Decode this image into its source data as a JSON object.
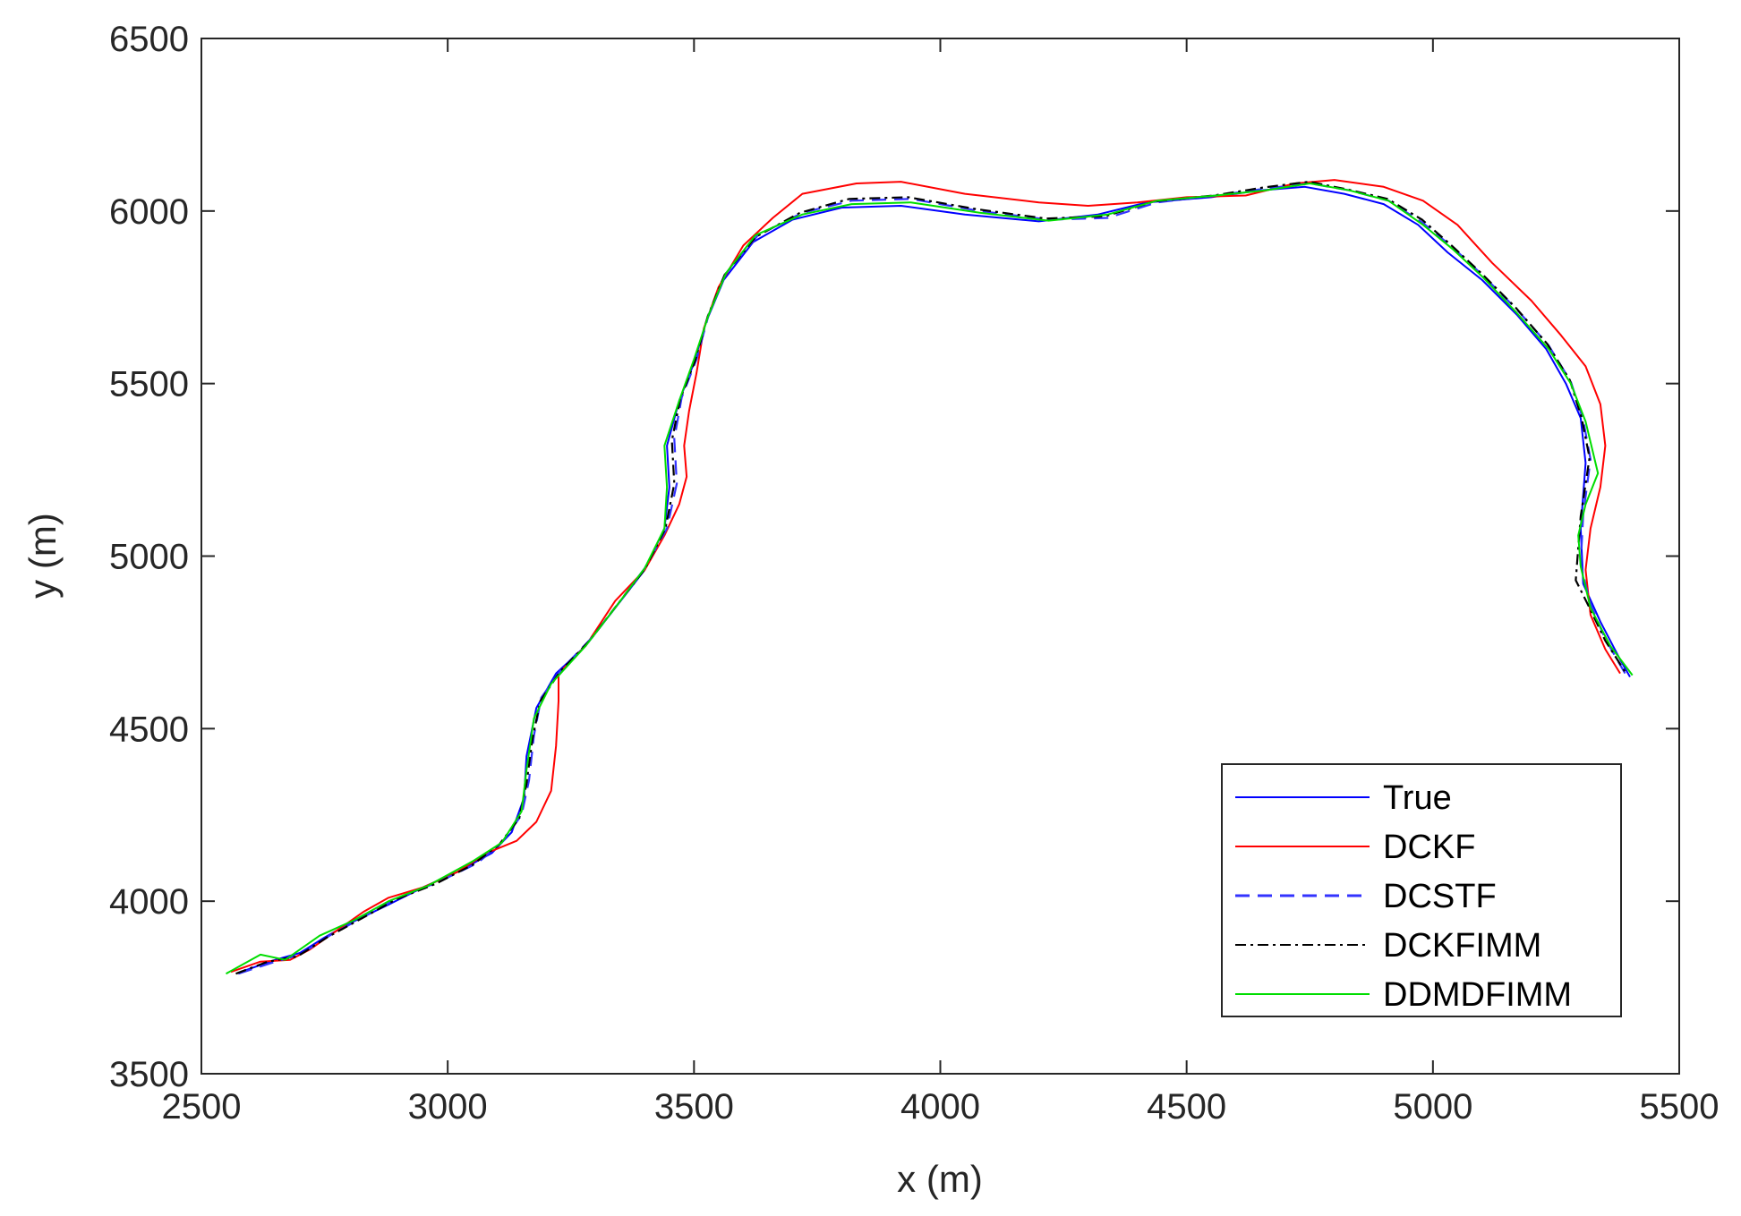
{
  "chart_data": {
    "type": "line",
    "title": "",
    "xlabel": "x (m)",
    "ylabel": "y (m)",
    "xlim": [
      2500,
      5500
    ],
    "ylim": [
      3500,
      6500
    ],
    "xticks": [
      2500,
      3000,
      3500,
      4000,
      4500,
      5000,
      5500
    ],
    "yticks": [
      3500,
      4000,
      4500,
      5000,
      5500,
      6000,
      6500
    ],
    "grid": false,
    "legend_position": "bottom-right",
    "series": [
      {
        "name": "True",
        "color": "#0000ff",
        "dash": "solid",
        "points": [
          [
            2580,
            3795
          ],
          [
            2650,
            3830
          ],
          [
            2700,
            3850
          ],
          [
            2750,
            3895
          ],
          [
            2800,
            3935
          ],
          [
            2880,
            3990
          ],
          [
            2950,
            4040
          ],
          [
            3020,
            4085
          ],
          [
            3090,
            4140
          ],
          [
            3130,
            4200
          ],
          [
            3155,
            4300
          ],
          [
            3160,
            4420
          ],
          [
            3180,
            4560
          ],
          [
            3220,
            4660
          ],
          [
            3280,
            4740
          ],
          [
            3340,
            4850
          ],
          [
            3400,
            4960
          ],
          [
            3440,
            5080
          ],
          [
            3450,
            5200
          ],
          [
            3445,
            5320
          ],
          [
            3470,
            5450
          ],
          [
            3500,
            5560
          ],
          [
            3525,
            5680
          ],
          [
            3560,
            5800
          ],
          [
            3620,
            5910
          ],
          [
            3700,
            5975
          ],
          [
            3800,
            6010
          ],
          [
            3920,
            6015
          ],
          [
            4050,
            5990
          ],
          [
            4200,
            5970
          ],
          [
            4320,
            5990
          ],
          [
            4420,
            6025
          ],
          [
            4550,
            6040
          ],
          [
            4650,
            6060
          ],
          [
            4740,
            6070
          ],
          [
            4820,
            6050
          ],
          [
            4900,
            6020
          ],
          [
            4970,
            5960
          ],
          [
            5030,
            5880
          ],
          [
            5100,
            5800
          ],
          [
            5170,
            5700
          ],
          [
            5230,
            5600
          ],
          [
            5270,
            5500
          ],
          [
            5300,
            5400
          ],
          [
            5310,
            5270
          ],
          [
            5300,
            5080
          ],
          [
            5305,
            4920
          ],
          [
            5340,
            4810
          ],
          [
            5380,
            4700
          ],
          [
            5400,
            4650
          ]
        ]
      },
      {
        "name": "DCKF",
        "color": "#ff0000",
        "dash": "solid",
        "points": [
          [
            2560,
            3795
          ],
          [
            2620,
            3825
          ],
          [
            2680,
            3830
          ],
          [
            2720,
            3860
          ],
          [
            2780,
            3920
          ],
          [
            2830,
            3970
          ],
          [
            2880,
            4010
          ],
          [
            2950,
            4040
          ],
          [
            3020,
            4085
          ],
          [
            3080,
            4140
          ],
          [
            3140,
            4175
          ],
          [
            3180,
            4230
          ],
          [
            3210,
            4320
          ],
          [
            3220,
            4450
          ],
          [
            3225,
            4580
          ],
          [
            3225,
            4660
          ],
          [
            3280,
            4740
          ],
          [
            3340,
            4870
          ],
          [
            3400,
            4960
          ],
          [
            3440,
            5060
          ],
          [
            3470,
            5150
          ],
          [
            3485,
            5230
          ],
          [
            3480,
            5320
          ],
          [
            3490,
            5420
          ],
          [
            3505,
            5530
          ],
          [
            3520,
            5660
          ],
          [
            3550,
            5780
          ],
          [
            3600,
            5900
          ],
          [
            3660,
            5980
          ],
          [
            3720,
            6050
          ],
          [
            3830,
            6080
          ],
          [
            3920,
            6085
          ],
          [
            4050,
            6050
          ],
          [
            4200,
            6025
          ],
          [
            4300,
            6015
          ],
          [
            4400,
            6025
          ],
          [
            4500,
            6040
          ],
          [
            4620,
            6045
          ],
          [
            4720,
            6080
          ],
          [
            4800,
            6090
          ],
          [
            4900,
            6070
          ],
          [
            4980,
            6030
          ],
          [
            5050,
            5960
          ],
          [
            5120,
            5850
          ],
          [
            5200,
            5740
          ],
          [
            5260,
            5640
          ],
          [
            5310,
            5550
          ],
          [
            5340,
            5440
          ],
          [
            5350,
            5320
          ],
          [
            5340,
            5200
          ],
          [
            5320,
            5080
          ],
          [
            5310,
            4960
          ],
          [
            5320,
            4830
          ],
          [
            5350,
            4730
          ],
          [
            5380,
            4660
          ]
        ]
      },
      {
        "name": "DCSTF",
        "color": "#3333ff",
        "dash": "dashed",
        "points": [
          [
            2575,
            3790
          ],
          [
            2640,
            3820
          ],
          [
            2700,
            3845
          ],
          [
            2760,
            3900
          ],
          [
            2830,
            3955
          ],
          [
            2900,
            4010
          ],
          [
            2980,
            4055
          ],
          [
            3060,
            4110
          ],
          [
            3110,
            4170
          ],
          [
            3150,
            4250
          ],
          [
            3165,
            4350
          ],
          [
            3175,
            4480
          ],
          [
            3190,
            4590
          ],
          [
            3230,
            4670
          ],
          [
            3290,
            4760
          ],
          [
            3345,
            4860
          ],
          [
            3400,
            4965
          ],
          [
            3445,
            5080
          ],
          [
            3465,
            5210
          ],
          [
            3460,
            5340
          ],
          [
            3475,
            5460
          ],
          [
            3505,
            5570
          ],
          [
            3530,
            5700
          ],
          [
            3565,
            5820
          ],
          [
            3630,
            5930
          ],
          [
            3720,
            5995
          ],
          [
            3820,
            6030
          ],
          [
            3940,
            6035
          ],
          [
            4080,
            6000
          ],
          [
            4220,
            5975
          ],
          [
            4340,
            5980
          ],
          [
            4440,
            6025
          ],
          [
            4560,
            6045
          ],
          [
            4660,
            6065
          ],
          [
            4750,
            6080
          ],
          [
            4830,
            6060
          ],
          [
            4910,
            6030
          ],
          [
            4980,
            5965
          ],
          [
            5040,
            5895
          ],
          [
            5100,
            5815
          ],
          [
            5170,
            5715
          ],
          [
            5235,
            5610
          ],
          [
            5280,
            5505
          ],
          [
            5305,
            5395
          ],
          [
            5320,
            5280
          ],
          [
            5305,
            5120
          ],
          [
            5300,
            4975
          ],
          [
            5320,
            4860
          ],
          [
            5350,
            4760
          ],
          [
            5390,
            4660
          ]
        ]
      },
      {
        "name": "DCKFIMM",
        "color": "#000000",
        "dash": "dashdot",
        "points": [
          [
            2570,
            3790
          ],
          [
            2635,
            3825
          ],
          [
            2695,
            3840
          ],
          [
            2755,
            3895
          ],
          [
            2825,
            3950
          ],
          [
            2895,
            4005
          ],
          [
            2975,
            4050
          ],
          [
            3050,
            4105
          ],
          [
            3105,
            4165
          ],
          [
            3145,
            4240
          ],
          [
            3160,
            4340
          ],
          [
            3172,
            4470
          ],
          [
            3188,
            4580
          ],
          [
            3228,
            4665
          ],
          [
            3288,
            4755
          ],
          [
            3342,
            4855
          ],
          [
            3400,
            4962
          ],
          [
            3442,
            5080
          ],
          [
            3460,
            5210
          ],
          [
            3455,
            5335
          ],
          [
            3472,
            5455
          ],
          [
            3502,
            5565
          ],
          [
            3528,
            5695
          ],
          [
            3562,
            5815
          ],
          [
            3625,
            5925
          ],
          [
            3715,
            5995
          ],
          [
            3815,
            6035
          ],
          [
            3935,
            6040
          ],
          [
            4075,
            6005
          ],
          [
            4215,
            5978
          ],
          [
            4335,
            5985
          ],
          [
            4435,
            6028
          ],
          [
            4555,
            6045
          ],
          [
            4655,
            6068
          ],
          [
            4748,
            6085
          ],
          [
            4828,
            6062
          ],
          [
            4908,
            6035
          ],
          [
            4978,
            5975
          ],
          [
            5038,
            5900
          ],
          [
            5098,
            5820
          ],
          [
            5168,
            5720
          ],
          [
            5232,
            5615
          ],
          [
            5278,
            5510
          ],
          [
            5302,
            5400
          ],
          [
            5318,
            5285
          ],
          [
            5300,
            5115
          ],
          [
            5290,
            4930
          ],
          [
            5318,
            4850
          ],
          [
            5350,
            4755
          ],
          [
            5392,
            4660
          ]
        ]
      },
      {
        "name": "DDMDFIMM",
        "color": "#00dd00",
        "dash": "solid",
        "points": [
          [
            2550,
            3790
          ],
          [
            2620,
            3845
          ],
          [
            2670,
            3830
          ],
          [
            2740,
            3900
          ],
          [
            2810,
            3945
          ],
          [
            2880,
            4000
          ],
          [
            2960,
            4045
          ],
          [
            3050,
            4115
          ],
          [
            3110,
            4170
          ],
          [
            3150,
            4260
          ],
          [
            3160,
            4380
          ],
          [
            3175,
            4530
          ],
          [
            3210,
            4630
          ],
          [
            3280,
            4740
          ],
          [
            3345,
            4860
          ],
          [
            3400,
            4965
          ],
          [
            3440,
            5080
          ],
          [
            3445,
            5200
          ],
          [
            3440,
            5320
          ],
          [
            3470,
            5450
          ],
          [
            3500,
            5570
          ],
          [
            3530,
            5700
          ],
          [
            3565,
            5820
          ],
          [
            3625,
            5930
          ],
          [
            3720,
            5990
          ],
          [
            3820,
            6020
          ],
          [
            3940,
            6025
          ],
          [
            4080,
            5995
          ],
          [
            4220,
            5972
          ],
          [
            4340,
            5990
          ],
          [
            4440,
            6030
          ],
          [
            4560,
            6045
          ],
          [
            4660,
            6060
          ],
          [
            4750,
            6080
          ],
          [
            4830,
            6060
          ],
          [
            4910,
            6030
          ],
          [
            4980,
            5960
          ],
          [
            5040,
            5890
          ],
          [
            5100,
            5810
          ],
          [
            5170,
            5705
          ],
          [
            5235,
            5600
          ],
          [
            5280,
            5500
          ],
          [
            5310,
            5390
          ],
          [
            5335,
            5240
          ],
          [
            5310,
            5150
          ],
          [
            5295,
            5060
          ],
          [
            5300,
            4970
          ],
          [
            5320,
            4850
          ],
          [
            5360,
            4740
          ],
          [
            5405,
            4655
          ]
        ]
      }
    ]
  }
}
